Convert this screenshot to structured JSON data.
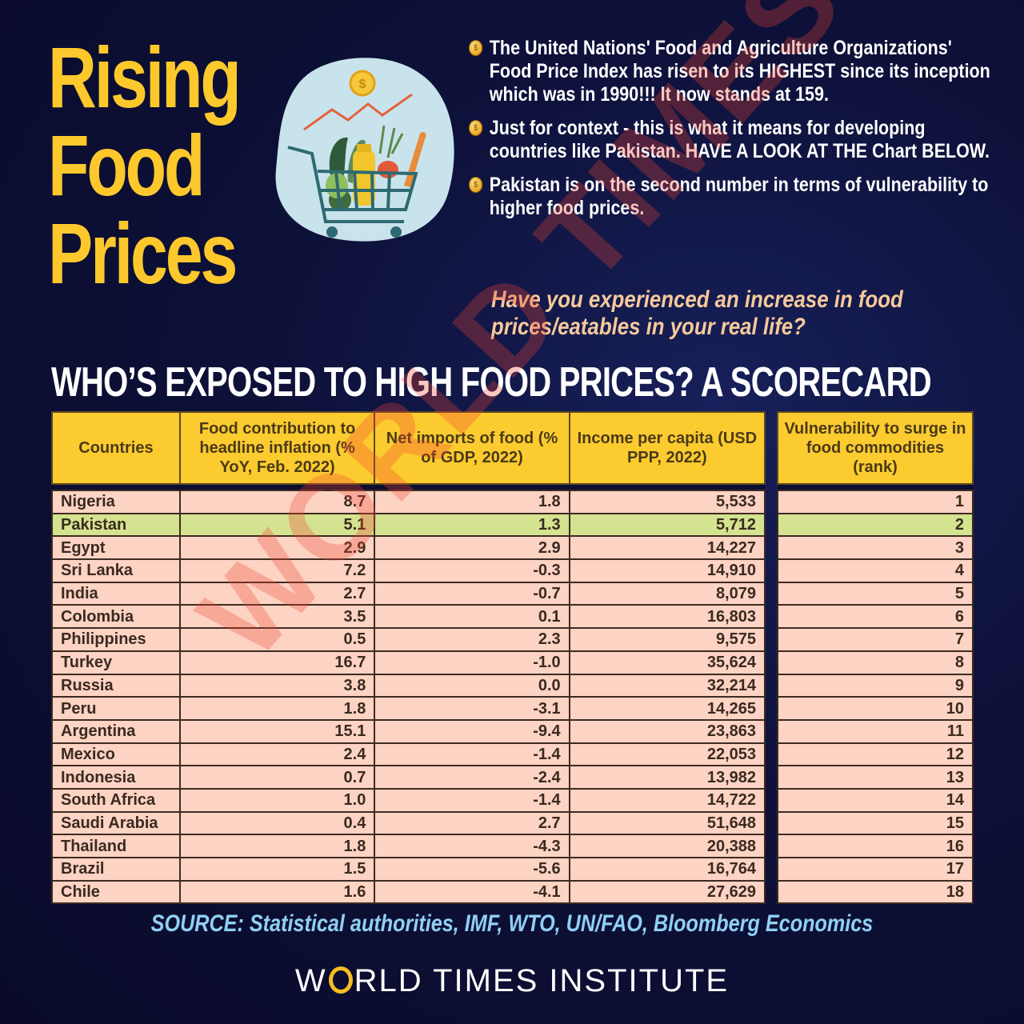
{
  "title": {
    "lines": [
      "Rising",
      "Food",
      "Prices"
    ],
    "color": "#fcc82c"
  },
  "illustration": {
    "icons": [
      "dollar-coin-icon",
      "rising-trend-line-icon",
      "shopping-cart-icon",
      "vegetables-icon",
      "bread-icon",
      "bottle-icon"
    ]
  },
  "bullets": [
    "The United Nations' Food and Agriculture Organizations' Food Price Index has risen to its HIGHEST since its inception which was in 1990!!! It now stands at 159.",
    "Just for context - this is what it means for developing countries like Pakistan. HAVE A LOOK AT THE Chart BELOW.",
    "Pakistan is on the second number in terms of vulnerability to higher food prices."
  ],
  "question": "Have you experienced an increase in food prices/eatables in your real life?",
  "scorecard_heading": "WHO’S EXPOSED TO HIGH FOOD PRICES? A SCORECARD",
  "table": {
    "headers": {
      "country": "Countries",
      "food": "Food contribution to headline inflation (% YoY, Feb. 2022)",
      "imports": "Net imports of food (% of GDP, 2022)",
      "income": "Income per capita (USD PPP, 2022)",
      "rank": "Vulnerability to surge in food commodities (rank)"
    },
    "rows": [
      {
        "country": "Nigeria",
        "food": "8.7",
        "imports": "1.8",
        "income": "5,533",
        "rank": "1"
      },
      {
        "country": "Pakistan",
        "food": "5.1",
        "imports": "1.3",
        "income": "5,712",
        "rank": "2"
      },
      {
        "country": "Egypt",
        "food": "2.9",
        "imports": "2.9",
        "income": "14,227",
        "rank": "3"
      },
      {
        "country": "Sri Lanka",
        "food": "7.2",
        "imports": "-0.3",
        "income": "14,910",
        "rank": "4"
      },
      {
        "country": "India",
        "food": "2.7",
        "imports": "-0.7",
        "income": "8,079",
        "rank": "5"
      },
      {
        "country": "Colombia",
        "food": "3.5",
        "imports": "0.1",
        "income": "16,803",
        "rank": "6"
      },
      {
        "country": "Philippines",
        "food": "0.5",
        "imports": "2.3",
        "income": "9,575",
        "rank": "7"
      },
      {
        "country": "Turkey",
        "food": "16.7",
        "imports": "-1.0",
        "income": "35,624",
        "rank": "8"
      },
      {
        "country": "Russia",
        "food": "3.8",
        "imports": "0.0",
        "income": "32,214",
        "rank": "9"
      },
      {
        "country": "Peru",
        "food": "1.8",
        "imports": "-3.1",
        "income": "14,265",
        "rank": "10"
      },
      {
        "country": "Argentina",
        "food": "15.1",
        "imports": "-9.4",
        "income": "23,863",
        "rank": "11"
      },
      {
        "country": "Mexico",
        "food": "2.4",
        "imports": "-1.4",
        "income": "22,053",
        "rank": "12"
      },
      {
        "country": "Indonesia",
        "food": "0.7",
        "imports": "-2.4",
        "income": "13,982",
        "rank": "13"
      },
      {
        "country": "South Africa",
        "food": "1.0",
        "imports": "-1.4",
        "income": "14,722",
        "rank": "14"
      },
      {
        "country": "Saudi Arabia",
        "food": "0.4",
        "imports": "2.7",
        "income": "51,648",
        "rank": "15"
      },
      {
        "country": "Thailand",
        "food": "1.8",
        "imports": "-4.3",
        "income": "20,388",
        "rank": "16"
      },
      {
        "country": "Brazil",
        "food": "1.5",
        "imports": "-5.6",
        "income": "16,764",
        "rank": "17"
      },
      {
        "country": "Chile",
        "food": "1.6",
        "imports": "-4.1",
        "income": "27,629",
        "rank": "18"
      }
    ],
    "highlight_country": "Pakistan",
    "colors": {
      "header": "#fccb2f",
      "row": "#fdd3c3",
      "highlight": "#d4e38f"
    }
  },
  "watermark": "WORLD TIMES",
  "source": "SOURCE: Statistical authorities, IMF, WTO, UN/FAO, Bloomberg Economics",
  "brand": {
    "before_o": "W",
    "after_o": "RLD TIMES INSTITUTE"
  },
  "chart_data": {
    "type": "table",
    "title": "WHO’S EXPOSED TO HIGH FOOD PRICES? A SCORECARD",
    "columns": [
      "Countries",
      "Food contribution to headline inflation (% YoY, Feb. 2022)",
      "Net imports of food (% of GDP, 2022)",
      "Income per capita (USD PPP, 2022)",
      "Vulnerability to surge in food commodities (rank)"
    ],
    "categories": [
      "Nigeria",
      "Pakistan",
      "Egypt",
      "Sri Lanka",
      "India",
      "Colombia",
      "Philippines",
      "Turkey",
      "Russia",
      "Peru",
      "Argentina",
      "Mexico",
      "Indonesia",
      "South Africa",
      "Saudi Arabia",
      "Thailand",
      "Brazil",
      "Chile"
    ],
    "series": [
      {
        "name": "Food contribution to headline inflation (% YoY, Feb. 2022)",
        "values": [
          8.7,
          5.1,
          2.9,
          7.2,
          2.7,
          3.5,
          0.5,
          16.7,
          3.8,
          1.8,
          15.1,
          2.4,
          0.7,
          1.0,
          0.4,
          1.8,
          1.5,
          1.6
        ]
      },
      {
        "name": "Net imports of food (% of GDP, 2022)",
        "values": [
          1.8,
          1.3,
          2.9,
          -0.3,
          -0.7,
          0.1,
          2.3,
          -1.0,
          0.0,
          -3.1,
          -9.4,
          -1.4,
          -2.4,
          -1.4,
          2.7,
          -4.3,
          -5.6,
          -4.1
        ]
      },
      {
        "name": "Income per capita (USD PPP, 2022)",
        "values": [
          5533,
          5712,
          14227,
          14910,
          8079,
          16803,
          9575,
          35624,
          32214,
          14265,
          23863,
          22053,
          13982,
          14722,
          51648,
          20388,
          16764,
          27629
        ]
      },
      {
        "name": "Vulnerability to surge in food commodities (rank)",
        "values": [
          1,
          2,
          3,
          4,
          5,
          6,
          7,
          8,
          9,
          10,
          11,
          12,
          13,
          14,
          15,
          16,
          17,
          18
        ]
      }
    ],
    "annotations": [
      "FAO Food Price Index now stands at 159",
      "Pakistan ranked 2nd"
    ],
    "source": "Statistical authorities, IMF, WTO, UN/FAO, Bloomberg Economics"
  }
}
